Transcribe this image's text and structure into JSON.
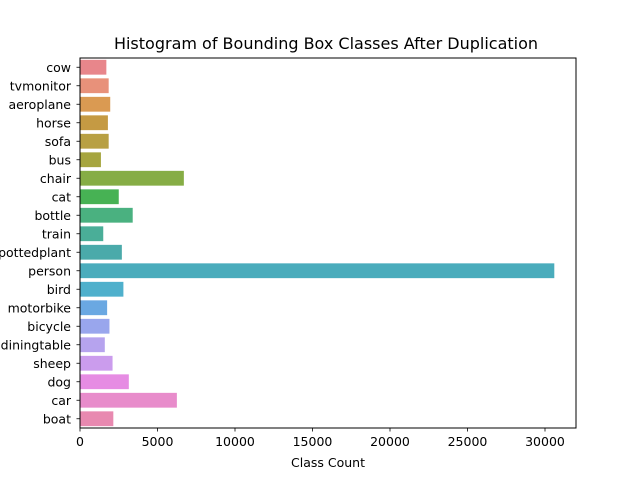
{
  "chart_data": {
    "type": "bar",
    "orientation": "horizontal",
    "title": "Histogram of Bounding Box Classes After Duplication",
    "xlabel": "Class Count",
    "ylabel": "",
    "xlim": [
      0,
      32000
    ],
    "x_ticks": [
      0,
      5000,
      10000,
      15000,
      20000,
      25000,
      30000
    ],
    "grid": false,
    "categories": [
      "cow",
      "tvmonitor",
      "aeroplane",
      "horse",
      "sofa",
      "bus",
      "chair",
      "cat",
      "bottle",
      "train",
      "pottedplant",
      "person",
      "bird",
      "motorbike",
      "bicycle",
      "diningtable",
      "sheep",
      "dog",
      "car",
      "boat"
    ],
    "values": [
      1700,
      1850,
      1950,
      1800,
      1850,
      1350,
      6700,
      2500,
      3400,
      1500,
      2700,
      30600,
      2800,
      1750,
      1900,
      1600,
      2100,
      3150,
      6250,
      2150
    ],
    "colors": [
      "#e8868b",
      "#e8917a",
      "#da9a52",
      "#c59a43",
      "#b8a043",
      "#a6a53f",
      "#86ad45",
      "#47b254",
      "#4ab180",
      "#4aae98",
      "#4aaaaa",
      "#4aacbc",
      "#4fb0cc",
      "#6aa8e2",
      "#99a6ed",
      "#b6a3ee",
      "#cb9ced",
      "#e68ce3",
      "#e88ccb",
      "#e889b0"
    ]
  }
}
